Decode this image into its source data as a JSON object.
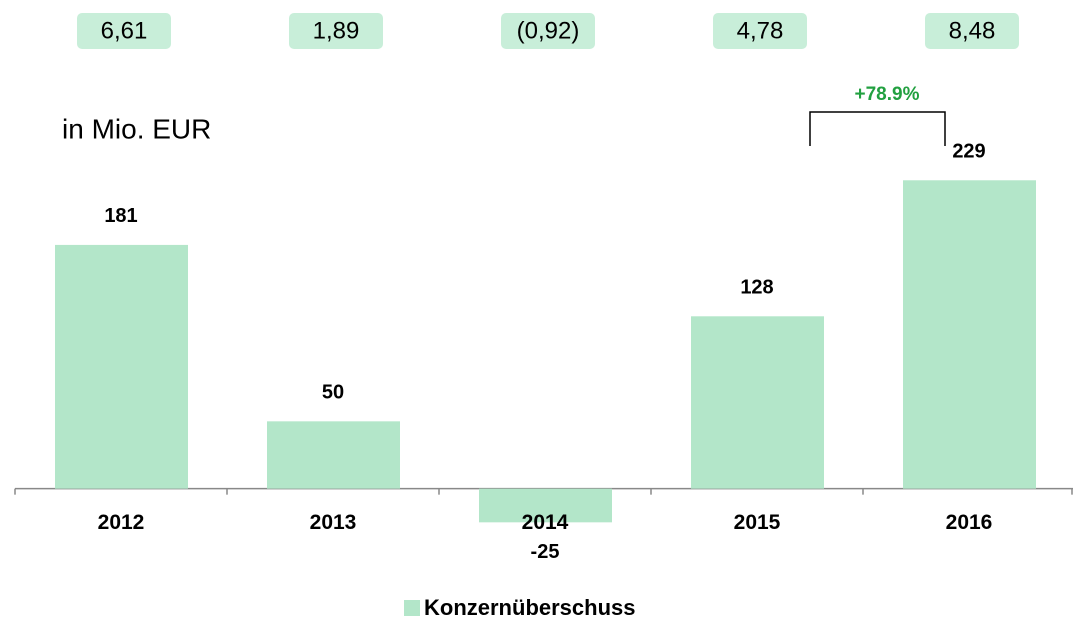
{
  "chart_data": {
    "type": "bar",
    "header_values": [
      "6,61",
      "1,89",
      "(0,92)",
      "4,78",
      "8,48"
    ],
    "unit_label": "in Mio. EUR",
    "annotation": "+78.9%",
    "categories": [
      "2012",
      "2013",
      "2014",
      "2015",
      "2016"
    ],
    "series": [
      {
        "name": "Konzernüberschuss",
        "color": "#b3e6c9",
        "values": [
          181,
          50,
          -25,
          128,
          229
        ]
      }
    ],
    "ylim": [
      -50,
      250
    ]
  }
}
